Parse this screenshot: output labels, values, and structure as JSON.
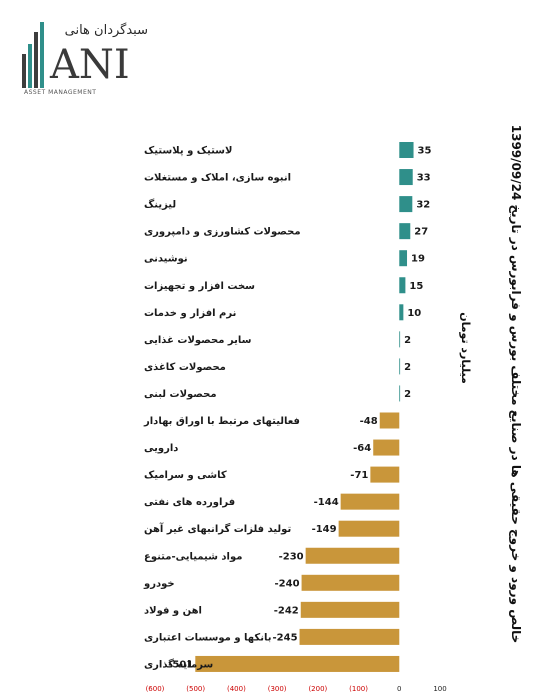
{
  "brand": {
    "name_fa": "سبدگردان هانی",
    "name_latin": "ANI",
    "tagline": "ASSET MANAGEMENT",
    "colors": {
      "teal": "#2f8f8a",
      "gold": "#c9963a",
      "gray": "#444444"
    }
  },
  "chart_data": {
    "type": "bar",
    "orientation": "horizontal",
    "title": "خالص ورود و خروج حقیقی ها در صنایع مختلف بورس و فرابورس در تاریخ 1399/09/24",
    "unit_label": "میلیارد تومان",
    "categories": [
      "لاستیک و پلاستیک",
      "انبوه سازی، املاک و مستغلات",
      "لیزینگ",
      "محصولات کشاورزی و دامپروری",
      "نوشیدنی",
      "سخت افزار و تجهیزات",
      "نرم افزار و خدمات",
      "سایر محصولات غذایی",
      "محصولات کاغذی",
      "محصولات لبنی",
      "فعالیتهای مرتبط با اوراق بهادار",
      "دارویی",
      "کاشی و سرامیک",
      "فراورده های نفتی",
      "تولید فلزات گرانبهای غیر آهن",
      "مواد شیمیایی-متنوع",
      "خودرو",
      "اهن و فولاد",
      "بانکها و موسسات اعتباری",
      "سرمایه گذاری"
    ],
    "values": [
      35,
      33,
      32,
      27,
      19,
      15,
      10,
      2,
      2,
      2,
      -48,
      -64,
      -71,
      -144,
      -149,
      -230,
      -240,
      -242,
      -245,
      -501
    ],
    "value_labels": [
      "35",
      "33",
      "32",
      "27",
      "19",
      "15",
      "10",
      "2",
      "2",
      "2",
      "-48",
      "-64",
      "-71",
      "-144",
      "-149",
      "-230",
      "-240",
      "-242",
      "-245",
      "-501"
    ],
    "xlim": [
      -600,
      100
    ],
    "xticks": [
      -600,
      -500,
      -400,
      -300,
      -200,
      -100,
      0,
      100
    ],
    "xtick_labels": [
      "(600)",
      "(500)",
      "(400)",
      "(300)",
      "(200)",
      "(100)",
      "0",
      "100"
    ],
    "positive_color": "#2f8f8a",
    "negative_color": "#c9963a",
    "negative_tick_color": "#cc0000",
    "positive_tick_color": "#222222",
    "grid": false,
    "legend": "none"
  }
}
